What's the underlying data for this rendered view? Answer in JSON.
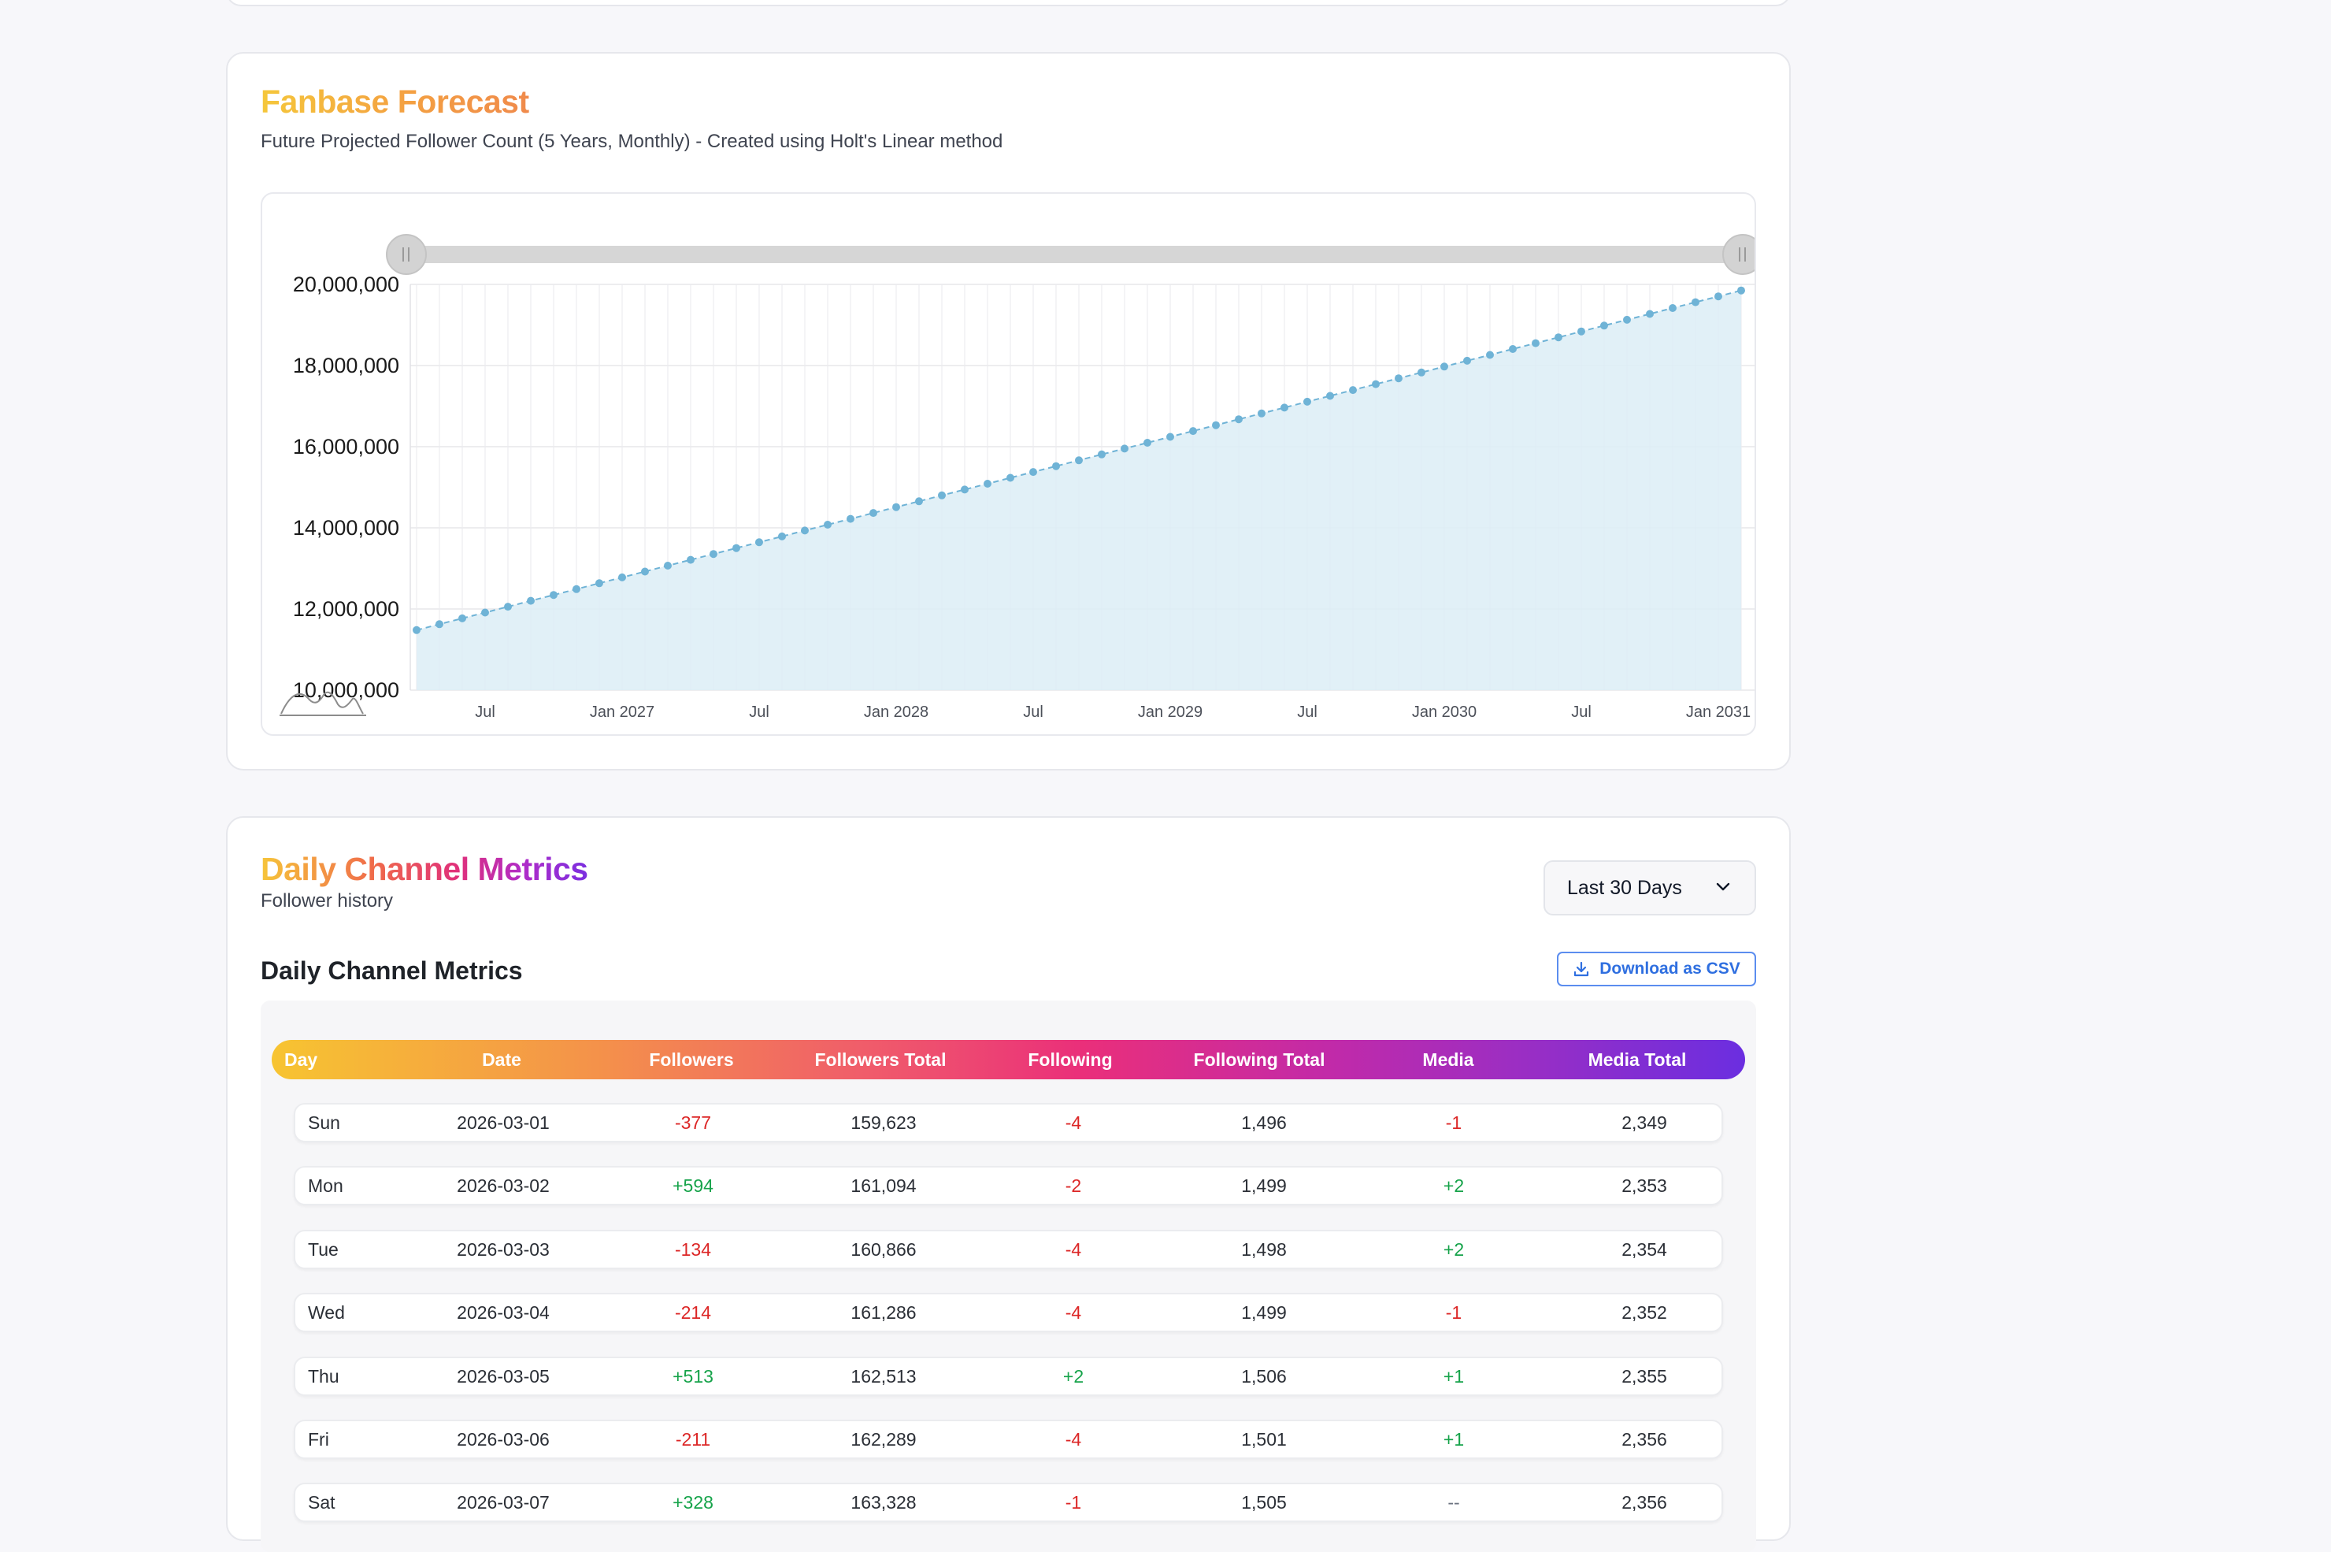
{
  "forecast": {
    "title": "Fanbase Forecast",
    "subtitle": "Future Projected Follower Count (5 Years, Monthly) - Created using Holt's Linear method",
    "colors": {
      "title_start": "#f5c73b",
      "title_end": "#f08a4b",
      "line": "#6fb3d6",
      "area": "#dcedf6"
    }
  },
  "chart_data": {
    "type": "area",
    "x_start": "2026-04",
    "x_end": "2031-02",
    "y_start": 11480000,
    "y_end": 19850000,
    "points_per_month": 1,
    "ylim": [
      10000000,
      20000000
    ],
    "y_ticks": [
      "20,000,000",
      "18,000,000",
      "16,000,000",
      "14,000,000",
      "12,000,000",
      "10,000,000"
    ],
    "x_ticks": [
      "Jul",
      "Jan 2027",
      "Jul",
      "Jan 2028",
      "Jul",
      "Jan 2029",
      "Jul",
      "Jan 2030",
      "Jul",
      "Jan 2031"
    ],
    "grid": true,
    "range_slider": true
  },
  "metrics": {
    "title": "Daily Channel Metrics",
    "subtitle": "Follower history",
    "range_label": "Last 30 Days",
    "table_heading": "Daily Channel Metrics",
    "csv_label": "Download as CSV",
    "columns": [
      "Day",
      "Date",
      "Followers",
      "Followers Total",
      "Following",
      "Following Total",
      "Media",
      "Media Total"
    ],
    "rows": [
      {
        "day": "Sun",
        "date": "2026-03-01",
        "followers": "-377",
        "followers_total": "159,623",
        "following": "-4",
        "following_total": "1,496",
        "media": "-1",
        "media_total": "2,349"
      },
      {
        "day": "Mon",
        "date": "2026-03-02",
        "followers": "+594",
        "followers_total": "161,094",
        "following": "-2",
        "following_total": "1,499",
        "media": "+2",
        "media_total": "2,353"
      },
      {
        "day": "Tue",
        "date": "2026-03-03",
        "followers": "-134",
        "followers_total": "160,866",
        "following": "-4",
        "following_total": "1,498",
        "media": "+2",
        "media_total": "2,354"
      },
      {
        "day": "Wed",
        "date": "2026-03-04",
        "followers": "-214",
        "followers_total": "161,286",
        "following": "-4",
        "following_total": "1,499",
        "media": "-1",
        "media_total": "2,352"
      },
      {
        "day": "Thu",
        "date": "2026-03-05",
        "followers": "+513",
        "followers_total": "162,513",
        "following": "+2",
        "following_total": "1,506",
        "media": "+1",
        "media_total": "2,355"
      },
      {
        "day": "Fri",
        "date": "2026-03-06",
        "followers": "-211",
        "followers_total": "162,289",
        "following": "-4",
        "following_total": "1,501",
        "media": "+1",
        "media_total": "2,356"
      },
      {
        "day": "Sat",
        "date": "2026-03-07",
        "followers": "+328",
        "followers_total": "163,328",
        "following": "-1",
        "following_total": "1,505",
        "media": "--",
        "media_total": "2,356"
      }
    ],
    "colors": {
      "positive": "#16a34a",
      "negative": "#dc2626",
      "csv": "#2f6fe0"
    }
  }
}
